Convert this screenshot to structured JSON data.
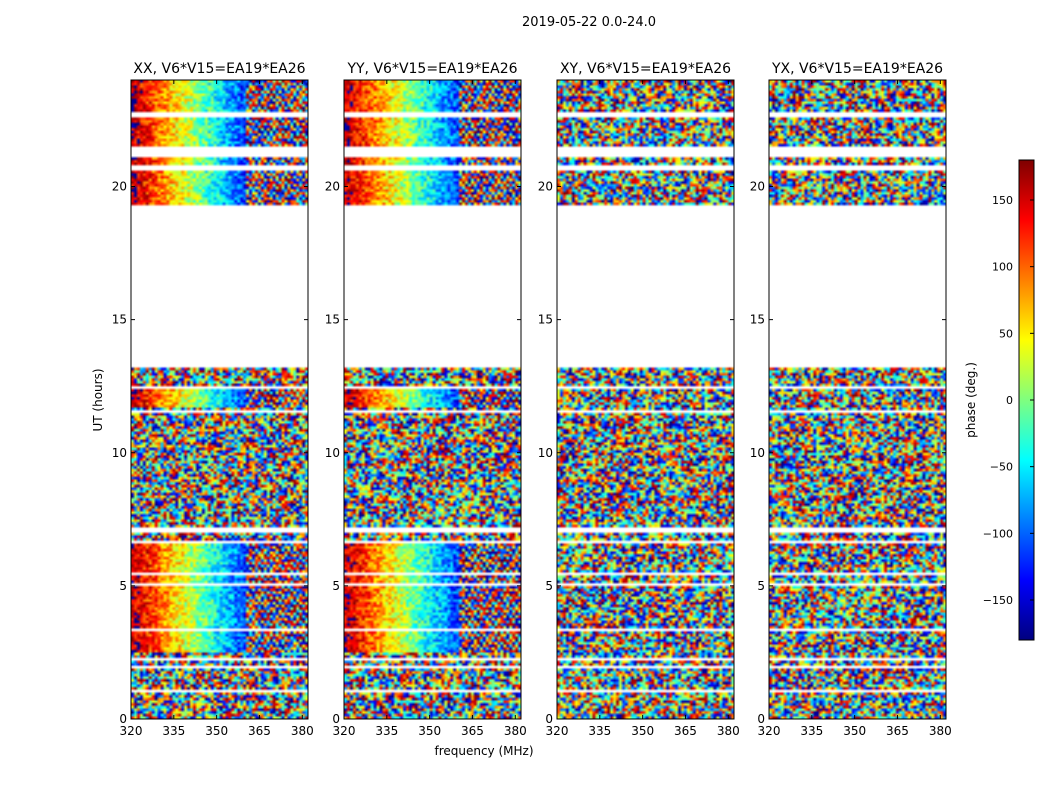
{
  "figure": {
    "suptitle": "2019-05-22 0.0-24.0",
    "xlabel": "frequency (MHz)",
    "ylabel": "UT (hours)"
  },
  "chart_data": [
    {
      "type": "heatmap",
      "title": "XX, V6*V15=EA19*EA26",
      "xlabel": "frequency (MHz)",
      "ylabel": "UT (hours)",
      "xlim": [
        320,
        382
      ],
      "ylim": [
        0,
        24
      ],
      "xticks": [
        "320",
        "335",
        "350",
        "365",
        "380"
      ],
      "yticks": [
        "0",
        "5",
        "10",
        "15",
        "20"
      ],
      "value": "phase (deg.)"
    },
    {
      "type": "heatmap",
      "title": "YY, V6*V15=EA19*EA26",
      "xlabel": "frequency (MHz)",
      "xlim": [
        320,
        382
      ],
      "ylim": [
        0,
        24
      ],
      "xticks": [
        "320",
        "335",
        "350",
        "365",
        "380"
      ],
      "yticks": [
        "0",
        "5",
        "10",
        "15",
        "20"
      ],
      "value": "phase (deg.)"
    },
    {
      "type": "heatmap",
      "title": "XY, V6*V15=EA19*EA26",
      "xlabel": "frequency (MHz)",
      "xlim": [
        320,
        382
      ],
      "ylim": [
        0,
        24
      ],
      "xticks": [
        "320",
        "335",
        "350",
        "365",
        "380"
      ],
      "yticks": [
        "0",
        "5",
        "10",
        "15",
        "20"
      ],
      "value": "phase (deg.)"
    },
    {
      "type": "heatmap",
      "title": "YX, V6*V15=EA19*EA26",
      "xlabel": "frequency (MHz)",
      "xlim": [
        320,
        382
      ],
      "ylim": [
        0,
        24
      ],
      "xticks": [
        "320",
        "335",
        "350",
        "365",
        "380"
      ],
      "yticks": [
        "0",
        "5",
        "10",
        "15",
        "20"
      ],
      "value": "phase (deg.)"
    }
  ],
  "colorbar": {
    "label": "phase (deg.)",
    "range": [
      -180,
      180
    ],
    "ticks": [
      "150",
      "100",
      "50",
      "0",
      "−50",
      "−100",
      "−150"
    ],
    "colormap": "jet"
  },
  "data_coverage": {
    "ut_bands_hours": [
      [
        0.0,
        0.95
      ],
      [
        1.1,
        1.85
      ],
      [
        2.0,
        2.2
      ],
      [
        2.35,
        3.3
      ],
      [
        3.45,
        5.0
      ],
      [
        5.1,
        5.4
      ],
      [
        5.5,
        6.6
      ],
      [
        6.75,
        7.0
      ],
      [
        7.2,
        11.5
      ],
      [
        11.65,
        12.35
      ],
      [
        12.5,
        12.85
      ],
      [
        12.95,
        13.15
      ],
      [
        19.3,
        20.6
      ],
      [
        20.8,
        21.1
      ],
      [
        21.55,
        22.6
      ],
      [
        22.8,
        24.0
      ]
    ],
    "coherent_panels": [
      "XX",
      "YY"
    ],
    "coherent_ut_ranges_hours": [
      [
        2.5,
        6.6
      ],
      [
        11.7,
        12.4
      ],
      [
        19.3,
        24.0
      ]
    ]
  }
}
